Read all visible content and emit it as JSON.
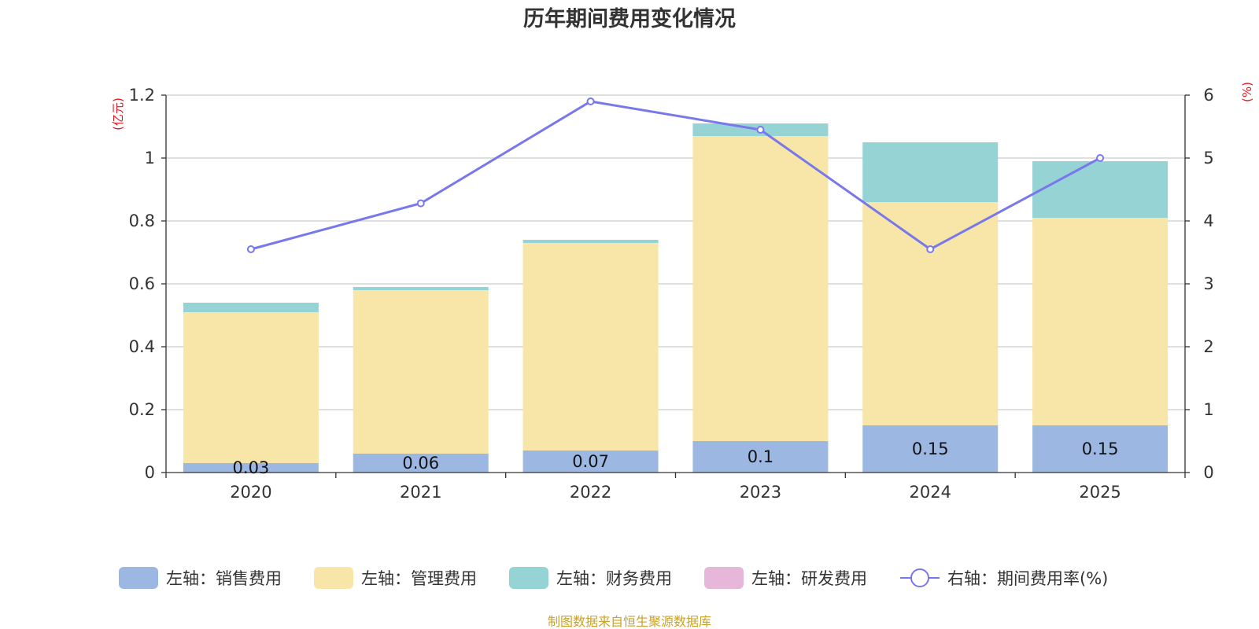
{
  "title": "历年期间费用变化情况",
  "source_note": "制图数据来自恒生聚源数据库",
  "colors": {
    "sales": "#9cb8e2",
    "admin": "#f7e6a8",
    "finance": "#96d3d4",
    "rd": "#e6b7d9",
    "rate": "#7878ec",
    "unit": "#e8141b",
    "source": "#c9a227",
    "grid": "#cccccc",
    "axis": "#333333"
  },
  "chart_data": {
    "type": "bar",
    "stacked": true,
    "categories": [
      "2020",
      "2021",
      "2022",
      "2023",
      "2024",
      "2025"
    ],
    "series": [
      {
        "key": "sales",
        "name": "左轴：销售费用",
        "axis": "left",
        "values": [
          0.03,
          0.06,
          0.07,
          0.1,
          0.15,
          0.15
        ],
        "labels": [
          "0.03",
          "0.06",
          "0.07",
          "0.1",
          "0.15",
          "0.15"
        ]
      },
      {
        "key": "admin",
        "name": "左轴：管理费用",
        "axis": "left",
        "values": [
          0.48,
          0.52,
          0.66,
          0.97,
          0.71,
          0.66
        ]
      },
      {
        "key": "finance",
        "name": "左轴：财务费用",
        "axis": "left",
        "values": [
          0.03,
          0.01,
          0.01,
          0.04,
          0.19,
          0.18
        ]
      },
      {
        "key": "rd",
        "name": "左轴：研发费用",
        "axis": "left",
        "values": [
          0,
          0,
          0,
          0,
          0,
          0
        ]
      },
      {
        "key": "rate",
        "name": "右轴：期间费用率(%)",
        "axis": "right",
        "type": "line",
        "values": [
          3.55,
          4.28,
          5.9,
          5.45,
          3.55,
          5.0
        ]
      }
    ],
    "y_left": {
      "unit": "(亿元)",
      "min": 0,
      "max": 1.2,
      "ticks": [
        "0",
        "0.2",
        "0.4",
        "0.6",
        "0.8",
        "1",
        "1.2"
      ]
    },
    "y_right": {
      "unit": "(%)",
      "min": 0,
      "max": 6,
      "ticks": [
        "0",
        "1",
        "2",
        "3",
        "4",
        "5",
        "6"
      ]
    },
    "grid": true,
    "legend_position": "bottom"
  }
}
